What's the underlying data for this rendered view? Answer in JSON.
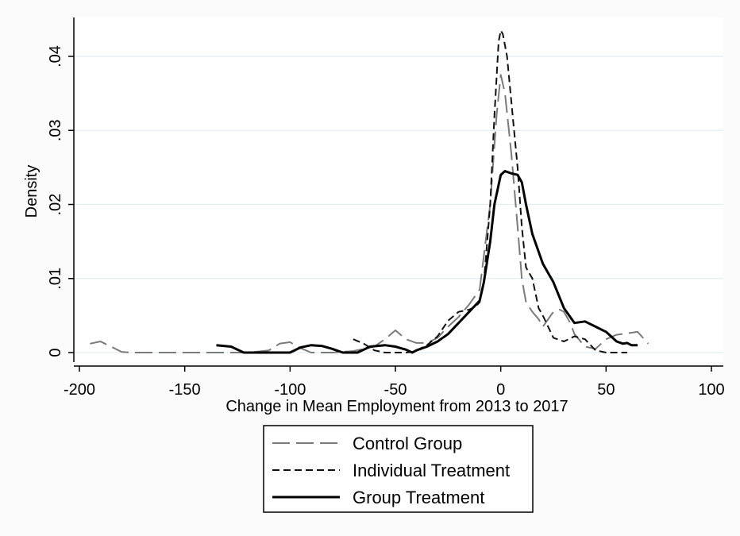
{
  "chart_data": {
    "type": "line",
    "xlabel": "Change in Mean Employment from 2013 to 2017",
    "ylabel": "Density",
    "xlim": [
      -200,
      100
    ],
    "ylim": [
      0,
      0.04
    ],
    "x_ticks": [
      -200,
      -150,
      -100,
      -50,
      0,
      50,
      100
    ],
    "x_tick_labels": [
      "-200",
      "-150",
      "-100",
      "-50",
      "0",
      "50",
      "100"
    ],
    "y_ticks": [
      0,
      0.01,
      0.02,
      0.03,
      0.04
    ],
    "y_tick_labels": [
      "0",
      ".01",
      ".02",
      ".03",
      ".04"
    ],
    "grid": "horizontal",
    "legend_position": "bottom",
    "series": [
      {
        "name": "Control Group",
        "color": "#7a7a7a",
        "style": "long-dash",
        "x": [
          -195,
          -190,
          -185,
          -180,
          -175,
          -170,
          -150,
          -130,
          -120,
          -110,
          -105,
          -100,
          -95,
          -90,
          -80,
          -70,
          -60,
          -55,
          -50,
          -45,
          -40,
          -35,
          -30,
          -25,
          -20,
          -15,
          -10,
          -5,
          -2,
          0,
          2,
          5,
          8,
          10,
          12,
          15,
          18,
          20,
          25,
          28,
          30,
          33,
          35,
          40,
          45,
          50,
          55,
          60,
          65,
          70
        ],
        "y": [
          0.0012,
          0.0015,
          0.0008,
          0.0001,
          0.0,
          0.0,
          0.0,
          0.0,
          0.0,
          0.0003,
          0.0012,
          0.0014,
          0.0006,
          0.0,
          0.0,
          0.0002,
          0.0008,
          0.0018,
          0.003,
          0.0018,
          0.0013,
          0.0013,
          0.002,
          0.0035,
          0.0048,
          0.0065,
          0.0085,
          0.02,
          0.032,
          0.0375,
          0.035,
          0.027,
          0.017,
          0.01,
          0.0068,
          0.0055,
          0.0045,
          0.0035,
          0.0055,
          0.0058,
          0.0055,
          0.004,
          0.0025,
          0.0008,
          0.0005,
          0.0018,
          0.0024,
          0.0026,
          0.0028,
          0.0012
        ]
      },
      {
        "name": "Individual Treatment",
        "color": "#111111",
        "style": "short-dash",
        "x": [
          -70,
          -65,
          -60,
          -55,
          -50,
          -45,
          -42,
          -40,
          -35,
          -30,
          -25,
          -20,
          -15,
          -12,
          -10,
          -8,
          -5,
          -3,
          -1,
          0,
          1,
          3,
          5,
          8,
          10,
          12,
          15,
          18,
          20,
          25,
          30,
          35,
          40,
          45,
          50,
          55,
          60
        ],
        "y": [
          0.0018,
          0.0012,
          0.0003,
          0.0,
          0.0,
          0.0,
          0.0001,
          0.0003,
          0.001,
          0.0022,
          0.0043,
          0.0055,
          0.0058,
          0.0062,
          0.0068,
          0.0095,
          0.02,
          0.032,
          0.042,
          0.0435,
          0.043,
          0.04,
          0.034,
          0.025,
          0.017,
          0.0115,
          0.01,
          0.006,
          0.005,
          0.002,
          0.0015,
          0.0022,
          0.0018,
          0.0003,
          0.0,
          0.0,
          0.0
        ]
      },
      {
        "name": "Group Treatment",
        "color": "#000000",
        "style": "solid",
        "x": [
          -135,
          -128,
          -122,
          -115,
          -108,
          -100,
          -95,
          -90,
          -85,
          -80,
          -75,
          -68,
          -62,
          -55,
          -50,
          -45,
          -42,
          -40,
          -35,
          -30,
          -25,
          -20,
          -15,
          -10,
          -8,
          -5,
          -3,
          0,
          2,
          5,
          8,
          10,
          12,
          15,
          20,
          25,
          30,
          35,
          40,
          45,
          50,
          55,
          58,
          60,
          62,
          65
        ],
        "y": [
          0.001,
          0.0008,
          0.0,
          0.0,
          0.0,
          0.0,
          0.0007,
          0.001,
          0.0009,
          0.0005,
          0.0,
          0.0,
          0.0008,
          0.001,
          0.0008,
          0.0004,
          0.0,
          0.0003,
          0.0008,
          0.0015,
          0.0025,
          0.004,
          0.0055,
          0.007,
          0.0095,
          0.015,
          0.02,
          0.024,
          0.0245,
          0.0242,
          0.024,
          0.023,
          0.02,
          0.016,
          0.012,
          0.0095,
          0.006,
          0.004,
          0.0042,
          0.0035,
          0.0028,
          0.0015,
          0.0012,
          0.0013,
          0.001,
          0.001
        ]
      }
    ]
  }
}
